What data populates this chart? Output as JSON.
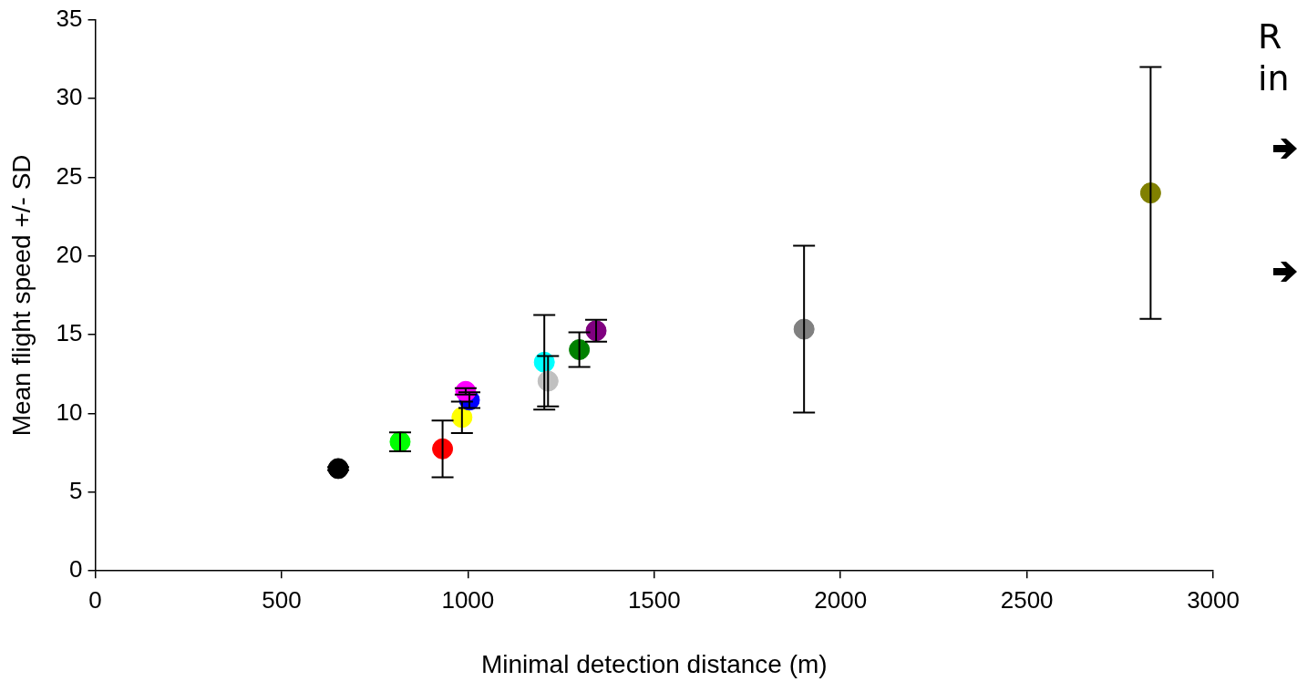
{
  "chart_data": {
    "type": "scatter",
    "xlabel": "Minimal detection distance (m)",
    "ylabel": "Mean flight speed +/- SD",
    "x": [
      652,
      818,
      932,
      984,
      1004,
      994,
      1205,
      1215,
      1299,
      1344,
      1902,
      2832
    ],
    "values": [
      6.5,
      8.2,
      7.75,
      9.75,
      10.85,
      11.4,
      13.25,
      12.05,
      14.05,
      15.25,
      15.35,
      24.0
    ],
    "errors": [
      0.1,
      0.6,
      1.8,
      1.0,
      0.5,
      0.2,
      3.0,
      1.6,
      1.1,
      0.7,
      5.3,
      8.0
    ],
    "colors": [
      "#000000",
      "#00ff00",
      "#ff0000",
      "#ffff00",
      "#0000ff",
      "#ff00ff",
      "#00ffff",
      "#c0c0c0",
      "#008000",
      "#800080",
      "#808080",
      "#808000"
    ],
    "xlim": [
      0,
      3000
    ],
    "xticks": [
      0,
      500,
      1000,
      1500,
      2000,
      2500,
      3000
    ],
    "ylim": [
      0,
      35
    ],
    "yticks": [
      0,
      5,
      10,
      15,
      20,
      25,
      30,
      35
    ],
    "marker": "circle",
    "annotations": [
      "R",
      "in"
    ]
  }
}
